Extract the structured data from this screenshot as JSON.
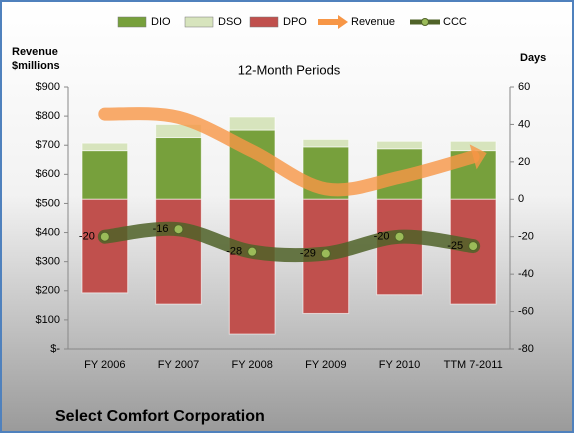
{
  "chart_data": {
    "type": "bar",
    "title": "Select Comfort Corporation",
    "subtitle": "12-Month Periods",
    "y_label": "Revenue $millions",
    "y2_label": "Days",
    "categories": [
      "FY 2006",
      "FY 2007",
      "FY 2008",
      "FY 2009",
      "FY 2010",
      "TTM 7-2011"
    ],
    "series": [
      {
        "name": "DIO",
        "color": "#77a03c",
        "axis": "y2",
        "values": [
          26,
          33,
          37,
          28,
          27,
          26
        ]
      },
      {
        "name": "DSO",
        "color": "#d7e4bd",
        "axis": "y2",
        "values": [
          4,
          7,
          7,
          4,
          4,
          5
        ]
      },
      {
        "name": "DPO",
        "color": "#c0504d",
        "axis": "y2",
        "values": [
          -50,
          -56,
          -72,
          -61,
          -51,
          -56
        ]
      },
      {
        "name": "Revenue",
        "color": "#f79646",
        "axis": "y",
        "values": [
          807,
          796,
          680,
          550,
          590,
          660
        ]
      },
      {
        "name": "CCC",
        "color": "#4f6228",
        "axis": "y2",
        "values": [
          -20,
          -16,
          -28,
          -29,
          -20,
          -25
        ]
      }
    ],
    "ylim": [
      0,
      900
    ],
    "yticks": [
      {
        "value": 0,
        "label": "$-"
      },
      {
        "value": 100,
        "label": "$100"
      },
      {
        "value": 200,
        "label": "$200"
      },
      {
        "value": 300,
        "label": "$300"
      },
      {
        "value": 400,
        "label": "$400"
      },
      {
        "value": 500,
        "label": "$500"
      },
      {
        "value": 600,
        "label": "$600"
      },
      {
        "value": 700,
        "label": "$700"
      },
      {
        "value": 800,
        "label": "$800"
      },
      {
        "value": 900,
        "label": "$900"
      }
    ],
    "y2lim": [
      -80,
      60
    ],
    "y2ticks": [
      -80,
      -60,
      -40,
      -20,
      0,
      20,
      40,
      60
    ]
  }
}
